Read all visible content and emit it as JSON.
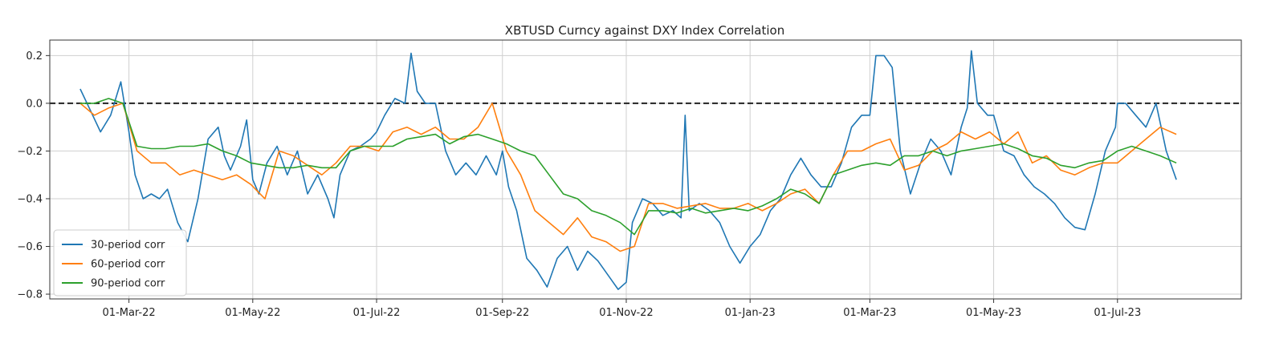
{
  "chart_data": {
    "type": "line",
    "title": "XBTUSD Curncy against DXY Index Correlation",
    "xlabel": "",
    "ylabel": "",
    "xlim": [
      "2022-01-21",
      "2023-08-31"
    ],
    "ylim": [
      -0.82,
      0.265
    ],
    "grid": true,
    "legend_position": "lower-left",
    "x_ticks": [
      "01-Mar-22",
      "01-May-22",
      "01-Jul-22",
      "01-Sep-22",
      "01-Nov-22",
      "01-Jan-23",
      "01-Mar-23",
      "01-May-23",
      "01-Jul-23"
    ],
    "x_tick_dates": [
      "2022-03-01",
      "2022-05-01",
      "2022-07-01",
      "2022-09-01",
      "2022-11-01",
      "2023-01-01",
      "2023-03-01",
      "2023-05-01",
      "2023-07-01"
    ],
    "y_ticks": [
      -0.8,
      -0.6,
      -0.4,
      -0.2,
      0.0,
      0.2
    ],
    "y_tick_labels": [
      "−0.8",
      "−0.6",
      "−0.4",
      "−0.2",
      "0.0",
      "0.2"
    ],
    "reference_line": {
      "y": 0.0,
      "style": "dashed",
      "color": "#222222"
    },
    "series": [
      {
        "name": "30-period corr",
        "color": "#1f77b4",
        "x": [
          "2022-02-05",
          "2022-02-10",
          "2022-02-15",
          "2022-02-20",
          "2022-02-25",
          "2022-03-01",
          "2022-03-04",
          "2022-03-08",
          "2022-03-12",
          "2022-03-16",
          "2022-03-20",
          "2022-03-25",
          "2022-03-30",
          "2022-04-04",
          "2022-04-09",
          "2022-04-14",
          "2022-04-17",
          "2022-04-20",
          "2022-04-25",
          "2022-04-28",
          "2022-05-01",
          "2022-05-04",
          "2022-05-08",
          "2022-05-13",
          "2022-05-18",
          "2022-05-23",
          "2022-05-28",
          "2022-06-02",
          "2022-06-07",
          "2022-06-10",
          "2022-06-13",
          "2022-06-18",
          "2022-06-23",
          "2022-06-28",
          "2022-07-01",
          "2022-07-05",
          "2022-07-10",
          "2022-07-15",
          "2022-07-18",
          "2022-07-21",
          "2022-07-25",
          "2022-07-30",
          "2022-08-04",
          "2022-08-09",
          "2022-08-14",
          "2022-08-19",
          "2022-08-24",
          "2022-08-29",
          "2022-09-01",
          "2022-09-04",
          "2022-09-08",
          "2022-09-13",
          "2022-09-18",
          "2022-09-23",
          "2022-09-28",
          "2022-10-03",
          "2022-10-08",
          "2022-10-13",
          "2022-10-18",
          "2022-10-23",
          "2022-10-28",
          "2022-11-01",
          "2022-11-04",
          "2022-11-09",
          "2022-11-14",
          "2022-11-19",
          "2022-11-24",
          "2022-11-28",
          "2022-11-30",
          "2022-12-02",
          "2022-12-07",
          "2022-12-12",
          "2022-12-17",
          "2022-12-22",
          "2022-12-27",
          "2023-01-01",
          "2023-01-06",
          "2023-01-11",
          "2023-01-16",
          "2023-01-21",
          "2023-01-26",
          "2023-01-31",
          "2023-02-05",
          "2023-02-10",
          "2023-02-15",
          "2023-02-20",
          "2023-02-25",
          "2023-03-01",
          "2023-03-04",
          "2023-03-08",
          "2023-03-12",
          "2023-03-16",
          "2023-03-21",
          "2023-03-26",
          "2023-03-31",
          "2023-04-05",
          "2023-04-10",
          "2023-04-15",
          "2023-04-18",
          "2023-04-20",
          "2023-04-23",
          "2023-04-28",
          "2023-05-01",
          "2023-05-06",
          "2023-05-11",
          "2023-05-16",
          "2023-05-21",
          "2023-05-26",
          "2023-05-31",
          "2023-06-05",
          "2023-06-10",
          "2023-06-15",
          "2023-06-20",
          "2023-06-25",
          "2023-06-30",
          "2023-07-01",
          "2023-07-05",
          "2023-07-10",
          "2023-07-15",
          "2023-07-20",
          "2023-07-25",
          "2023-07-30"
        ],
        "values": [
          0.06,
          -0.03,
          -0.12,
          -0.05,
          0.09,
          -0.12,
          -0.3,
          -0.4,
          -0.38,
          -0.4,
          -0.36,
          -0.5,
          -0.58,
          -0.4,
          -0.15,
          -0.1,
          -0.22,
          -0.28,
          -0.18,
          -0.07,
          -0.32,
          -0.38,
          -0.25,
          -0.18,
          -0.3,
          -0.2,
          -0.38,
          -0.3,
          -0.4,
          -0.48,
          -0.3,
          -0.2,
          -0.18,
          -0.15,
          -0.12,
          -0.05,
          0.02,
          0.0,
          0.21,
          0.05,
          0.0,
          0.0,
          -0.2,
          -0.3,
          -0.25,
          -0.3,
          -0.22,
          -0.3,
          -0.2,
          -0.35,
          -0.45,
          -0.65,
          -0.7,
          -0.77,
          -0.65,
          -0.6,
          -0.7,
          -0.62,
          -0.66,
          -0.72,
          -0.78,
          -0.75,
          -0.5,
          -0.4,
          -0.42,
          -0.47,
          -0.45,
          -0.48,
          -0.05,
          -0.45,
          -0.42,
          -0.45,
          -0.5,
          -0.6,
          -0.67,
          -0.6,
          -0.55,
          -0.45,
          -0.4,
          -0.3,
          -0.23,
          -0.3,
          -0.35,
          -0.35,
          -0.25,
          -0.1,
          -0.05,
          -0.05,
          0.2,
          0.2,
          0.15,
          -0.2,
          -0.38,
          -0.25,
          -0.15,
          -0.2,
          -0.3,
          -0.1,
          -0.02,
          0.22,
          0.0,
          -0.05,
          -0.05,
          -0.2,
          -0.22,
          -0.3,
          -0.35,
          -0.38,
          -0.42,
          -0.48,
          -0.52,
          -0.53,
          -0.38,
          -0.2,
          -0.1,
          0.0,
          0.0,
          -0.05,
          -0.1,
          0.0,
          -0.2,
          -0.32
        ]
      },
      {
        "name": "60-period corr",
        "color": "#ff7f0e",
        "x": [
          "2022-02-05",
          "2022-02-12",
          "2022-02-19",
          "2022-02-26",
          "2022-03-05",
          "2022-03-12",
          "2022-03-19",
          "2022-03-26",
          "2022-04-02",
          "2022-04-09",
          "2022-04-16",
          "2022-04-23",
          "2022-04-30",
          "2022-05-07",
          "2022-05-14",
          "2022-05-21",
          "2022-05-28",
          "2022-06-04",
          "2022-06-11",
          "2022-06-18",
          "2022-06-25",
          "2022-07-02",
          "2022-07-09",
          "2022-07-16",
          "2022-07-23",
          "2022-07-30",
          "2022-08-06",
          "2022-08-13",
          "2022-08-20",
          "2022-08-27",
          "2022-09-03",
          "2022-09-10",
          "2022-09-17",
          "2022-09-24",
          "2022-10-01",
          "2022-10-08",
          "2022-10-15",
          "2022-10-22",
          "2022-10-29",
          "2022-11-05",
          "2022-11-12",
          "2022-11-19",
          "2022-11-26",
          "2022-12-03",
          "2022-12-10",
          "2022-12-17",
          "2022-12-24",
          "2022-12-31",
          "2023-01-07",
          "2023-01-14",
          "2023-01-21",
          "2023-01-28",
          "2023-02-04",
          "2023-02-11",
          "2023-02-18",
          "2023-02-25",
          "2023-03-04",
          "2023-03-11",
          "2023-03-18",
          "2023-03-25",
          "2023-04-01",
          "2023-04-08",
          "2023-04-15",
          "2023-04-22",
          "2023-04-29",
          "2023-05-06",
          "2023-05-13",
          "2023-05-20",
          "2023-05-27",
          "2023-06-03",
          "2023-06-10",
          "2023-06-17",
          "2023-06-24",
          "2023-07-01",
          "2023-07-08",
          "2023-07-15",
          "2023-07-22",
          "2023-07-30"
        ],
        "values": [
          0.0,
          -0.05,
          -0.02,
          0.0,
          -0.2,
          -0.25,
          -0.25,
          -0.3,
          -0.28,
          -0.3,
          -0.32,
          -0.3,
          -0.34,
          -0.4,
          -0.2,
          -0.22,
          -0.26,
          -0.3,
          -0.25,
          -0.18,
          -0.18,
          -0.2,
          -0.12,
          -0.1,
          -0.13,
          -0.1,
          -0.15,
          -0.15,
          -0.1,
          0.0,
          -0.2,
          -0.3,
          -0.45,
          -0.5,
          -0.55,
          -0.48,
          -0.56,
          -0.58,
          -0.62,
          -0.6,
          -0.42,
          -0.42,
          -0.44,
          -0.43,
          -0.42,
          -0.44,
          -0.44,
          -0.42,
          -0.45,
          -0.42,
          -0.38,
          -0.36,
          -0.42,
          -0.3,
          -0.2,
          -0.2,
          -0.17,
          -0.15,
          -0.28,
          -0.26,
          -0.2,
          -0.17,
          -0.12,
          -0.15,
          -0.12,
          -0.17,
          -0.12,
          -0.25,
          -0.22,
          -0.28,
          -0.3,
          -0.27,
          -0.25,
          -0.25,
          -0.2,
          -0.15,
          -0.1,
          -0.13
        ]
      },
      {
        "name": "90-period corr",
        "color": "#2ca02c",
        "x": [
          "2022-02-05",
          "2022-02-12",
          "2022-02-19",
          "2022-02-26",
          "2022-03-05",
          "2022-03-12",
          "2022-03-19",
          "2022-03-26",
          "2022-04-02",
          "2022-04-09",
          "2022-04-16",
          "2022-04-23",
          "2022-04-30",
          "2022-05-07",
          "2022-05-14",
          "2022-05-21",
          "2022-05-28",
          "2022-06-04",
          "2022-06-11",
          "2022-06-18",
          "2022-06-25",
          "2022-07-02",
          "2022-07-09",
          "2022-07-16",
          "2022-07-23",
          "2022-07-30",
          "2022-08-06",
          "2022-08-13",
          "2022-08-20",
          "2022-08-27",
          "2022-09-03",
          "2022-09-10",
          "2022-09-17",
          "2022-09-24",
          "2022-10-01",
          "2022-10-08",
          "2022-10-15",
          "2022-10-22",
          "2022-10-29",
          "2022-11-05",
          "2022-11-12",
          "2022-11-19",
          "2022-11-26",
          "2022-12-03",
          "2022-12-10",
          "2022-12-17",
          "2022-12-24",
          "2022-12-31",
          "2023-01-07",
          "2023-01-14",
          "2023-01-21",
          "2023-01-28",
          "2023-02-04",
          "2023-02-11",
          "2023-02-18",
          "2023-02-25",
          "2023-03-04",
          "2023-03-11",
          "2023-03-18",
          "2023-03-25",
          "2023-04-01",
          "2023-04-08",
          "2023-04-15",
          "2023-04-22",
          "2023-04-29",
          "2023-05-06",
          "2023-05-13",
          "2023-05-20",
          "2023-05-27",
          "2023-06-03",
          "2023-06-10",
          "2023-06-17",
          "2023-06-24",
          "2023-07-01",
          "2023-07-08",
          "2023-07-15",
          "2023-07-22",
          "2023-07-30"
        ],
        "values": [
          0.0,
          0.0,
          0.02,
          0.0,
          -0.18,
          -0.19,
          -0.19,
          -0.18,
          -0.18,
          -0.17,
          -0.2,
          -0.22,
          -0.25,
          -0.26,
          -0.27,
          -0.27,
          -0.26,
          -0.27,
          -0.27,
          -0.2,
          -0.18,
          -0.18,
          -0.18,
          -0.15,
          -0.14,
          -0.13,
          -0.17,
          -0.14,
          -0.13,
          -0.15,
          -0.17,
          -0.2,
          -0.22,
          -0.3,
          -0.38,
          -0.4,
          -0.45,
          -0.47,
          -0.5,
          -0.55,
          -0.45,
          -0.45,
          -0.46,
          -0.44,
          -0.46,
          -0.45,
          -0.44,
          -0.45,
          -0.43,
          -0.4,
          -0.36,
          -0.38,
          -0.42,
          -0.3,
          -0.28,
          -0.26,
          -0.25,
          -0.26,
          -0.22,
          -0.22,
          -0.2,
          -0.22,
          -0.2,
          -0.19,
          -0.18,
          -0.17,
          -0.19,
          -0.22,
          -0.23,
          -0.26,
          -0.27,
          -0.25,
          -0.24,
          -0.2,
          -0.18,
          -0.2,
          -0.22,
          -0.25
        ]
      }
    ]
  }
}
